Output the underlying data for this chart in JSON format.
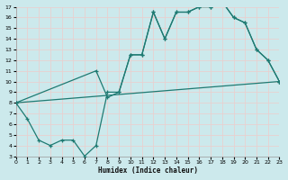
{
  "xlabel": "Humidex (Indice chaleur)",
  "bg_color": "#cce9ec",
  "grid_color": "#e8d0d0",
  "line_color": "#1e7a72",
  "xlim": [
    0,
    23
  ],
  "ylim": [
    3,
    17
  ],
  "xticks": [
    0,
    1,
    2,
    3,
    4,
    5,
    6,
    7,
    8,
    9,
    10,
    11,
    12,
    13,
    14,
    15,
    16,
    17,
    18,
    19,
    20,
    21,
    22,
    23
  ],
  "yticks": [
    3,
    4,
    5,
    6,
    7,
    8,
    9,
    10,
    11,
    12,
    13,
    14,
    15,
    16,
    17
  ],
  "curve1_x": [
    0,
    1,
    2,
    3,
    4,
    5,
    6,
    7,
    8,
    9,
    10,
    11,
    12,
    13,
    14,
    15,
    16,
    17,
    18,
    19,
    20,
    21,
    22,
    23
  ],
  "curve1_y": [
    8,
    6.5,
    4.5,
    4,
    4.5,
    4.5,
    3,
    4,
    9,
    9,
    12.5,
    12.5,
    16.5,
    14,
    16.5,
    16.5,
    17,
    17,
    17.5,
    16,
    15.5,
    13,
    12,
    10
  ],
  "curve2_x": [
    0,
    7,
    8,
    9,
    10,
    11,
    12,
    13,
    14,
    15,
    16,
    17,
    18,
    19,
    20,
    21,
    22,
    23
  ],
  "curve2_y": [
    8,
    11,
    8.5,
    9,
    12.5,
    12.5,
    16.5,
    14,
    16.5,
    16.5,
    17,
    17,
    17.5,
    16,
    15.5,
    13,
    12,
    10
  ],
  "curve3_x": [
    0,
    23
  ],
  "curve3_y": [
    8,
    10
  ]
}
